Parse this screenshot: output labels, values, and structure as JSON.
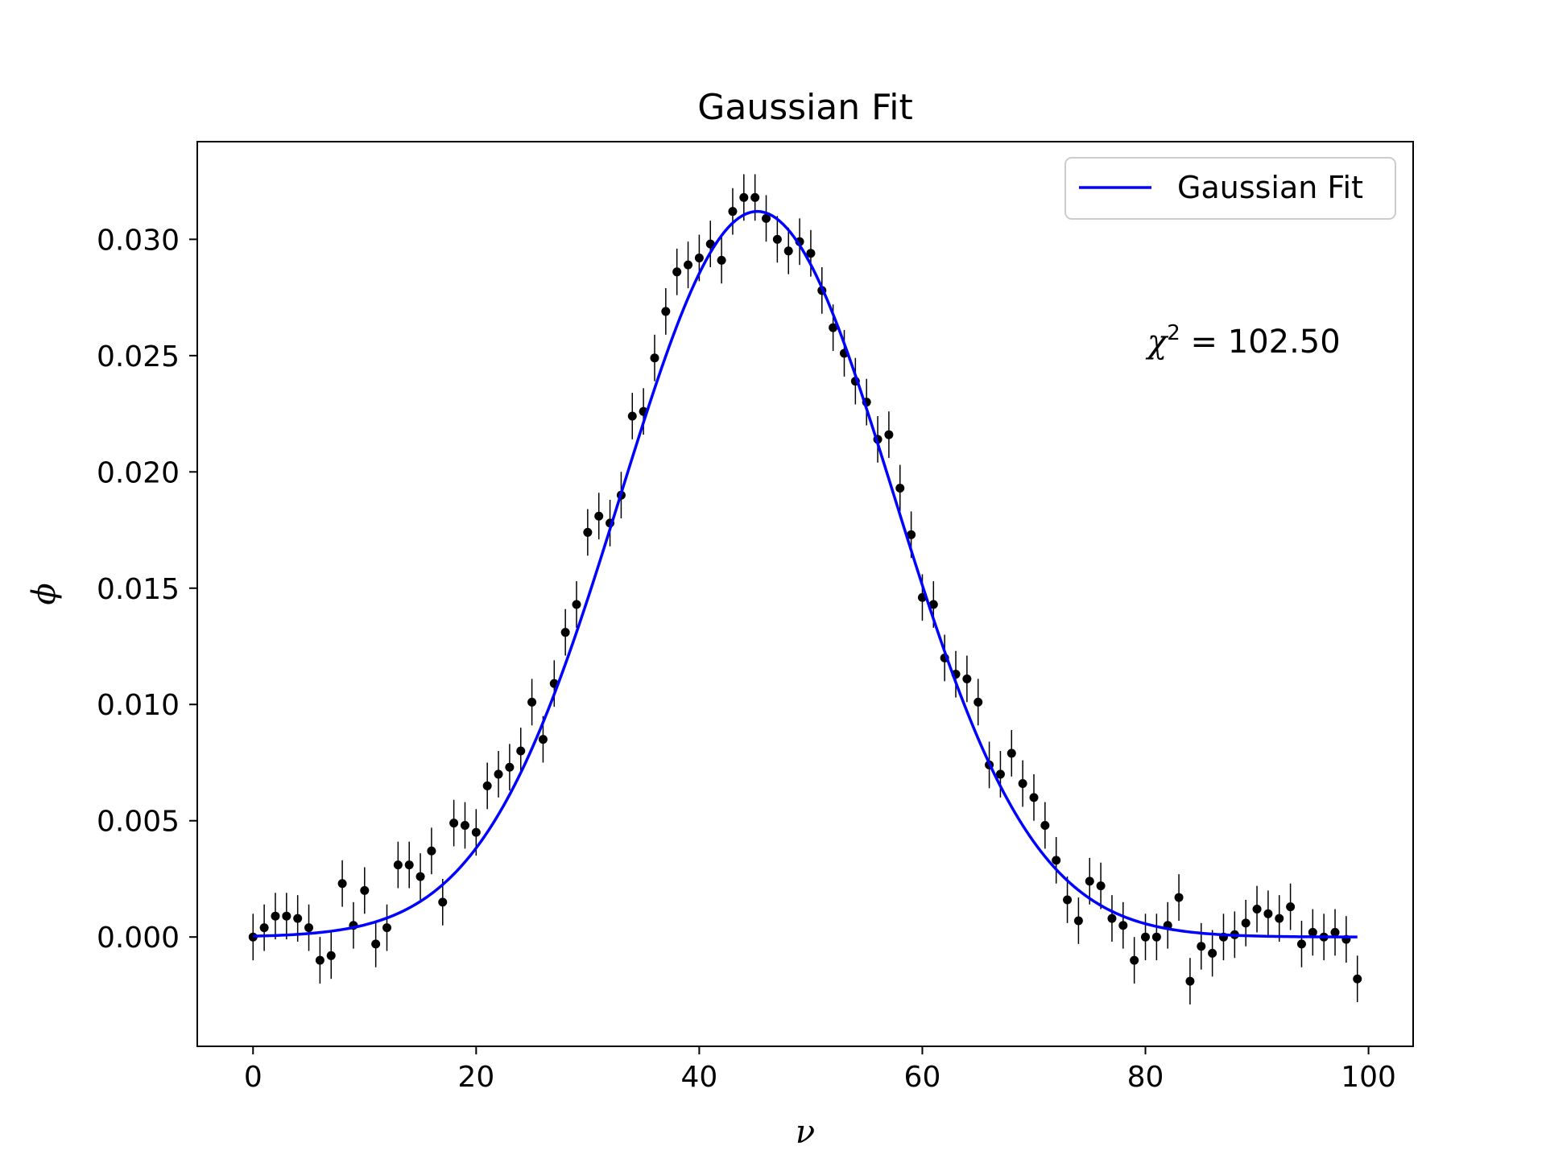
{
  "chart_data": {
    "type": "scatter",
    "title": "Gaussian Fit",
    "xlabel": "ν",
    "ylabel": "ϕ",
    "xlim": [
      -5,
      104
    ],
    "ylim": [
      -0.0047,
      0.0342
    ],
    "xticks": [
      0,
      20,
      40,
      60,
      80,
      100
    ],
    "xtick_labels": [
      "0",
      "20",
      "40",
      "60",
      "80",
      "100"
    ],
    "yticks": [
      0.0,
      0.005,
      0.01,
      0.015,
      0.02,
      0.025,
      0.03
    ],
    "ytick_labels": [
      "0.000",
      "0.005",
      "0.010",
      "0.015",
      "0.020",
      "0.025",
      "0.030"
    ],
    "grid": false,
    "legend": {
      "position": "top-right",
      "entries": [
        "Gaussian Fit"
      ]
    },
    "annotation": {
      "symbol": "χ",
      "superscript": "2",
      "text": " = 102.50",
      "position": "upper-right"
    },
    "data": {
      "x": [
        0,
        1,
        2,
        3,
        4,
        5,
        6,
        7,
        8,
        9,
        10,
        11,
        12,
        13,
        14,
        15,
        16,
        17,
        18,
        19,
        20,
        21,
        22,
        23,
        24,
        25,
        26,
        27,
        28,
        29,
        30,
        31,
        32,
        33,
        34,
        35,
        36,
        37,
        38,
        39,
        40,
        41,
        42,
        43,
        44,
        45,
        46,
        47,
        48,
        49,
        50,
        51,
        52,
        53,
        54,
        55,
        56,
        57,
        58,
        59,
        60,
        61,
        62,
        63,
        64,
        65,
        66,
        67,
        68,
        69,
        70,
        71,
        72,
        73,
        74,
        75,
        76,
        77,
        78,
        79,
        80,
        81,
        82,
        83,
        84,
        85,
        86,
        87,
        88,
        89,
        90,
        91,
        92,
        93,
        94,
        95,
        96,
        97,
        98,
        99
      ],
      "y": [
        0.0,
        0.0004,
        0.0009,
        0.0009,
        0.0008,
        0.0004,
        -0.001,
        -0.0008,
        0.0023,
        0.0005,
        0.002,
        -0.0003,
        0.0004,
        0.0031,
        0.0031,
        0.0026,
        0.0037,
        0.0015,
        0.0049,
        0.0048,
        0.0045,
        0.0065,
        0.007,
        0.0073,
        0.008,
        0.0101,
        0.0085,
        0.0109,
        0.0131,
        0.0143,
        0.0174,
        0.0181,
        0.0178,
        0.019,
        0.0224,
        0.0226,
        0.0249,
        0.0269,
        0.0286,
        0.0289,
        0.0292,
        0.0298,
        0.0291,
        0.0312,
        0.0318,
        0.0318,
        0.0309,
        0.03,
        0.0295,
        0.0299,
        0.0294,
        0.0278,
        0.0262,
        0.0251,
        0.0239,
        0.023,
        0.0214,
        0.0216,
        0.0193,
        0.0173,
        0.0146,
        0.0143,
        0.012,
        0.0113,
        0.0111,
        0.0101,
        0.0074,
        0.007,
        0.0079,
        0.0066,
        0.006,
        0.0048,
        0.0033,
        0.0016,
        0.0007,
        0.0024,
        0.0022,
        0.0008,
        0.0005,
        -0.001,
        0.0,
        0.0,
        0.0005,
        0.0017,
        -0.0019,
        -0.0004,
        -0.0007,
        0.0,
        0.0001,
        0.0006,
        0.0012,
        0.001,
        0.0008,
        0.0013,
        -0.0003,
        0.0002,
        0.0,
        0.0002,
        -0.0001,
        -0.0018
      ],
      "yerr": 0.001,
      "marker_color": "#000000"
    },
    "series": [
      {
        "name": "Gaussian Fit",
        "model": "gaussian",
        "amplitude": 0.0312,
        "mean": 45.2,
        "sigma": 12.3,
        "x_range": [
          0,
          99
        ],
        "color": "#0000ff"
      }
    ]
  }
}
